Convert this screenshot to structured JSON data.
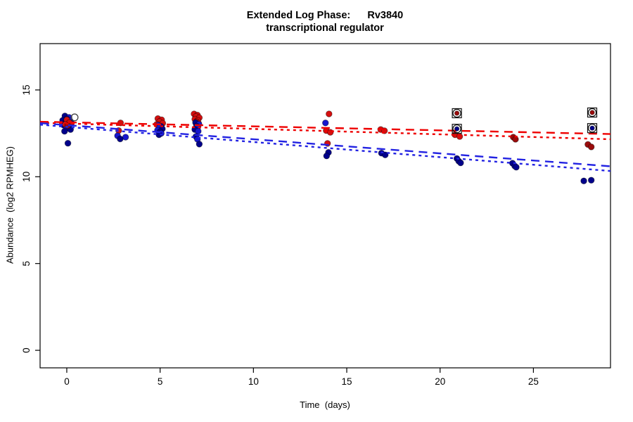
{
  "chart_data": {
    "type": "scatter",
    "title_line1": "Extended Log Phase:      Rv3840",
    "title_line2": "transcriptional regulator",
    "xlabel": "Time  (days)",
    "ylabel": "Abundance  (log2 RPMHEG)",
    "x_domain": [
      -1.43,
      29.13
    ],
    "y_domain": [
      -1.01,
      17.67
    ],
    "x_ticks": [
      0,
      5,
      10,
      15,
      20,
      25
    ],
    "y_ticks": [
      0,
      5,
      10,
      15
    ],
    "grid": false,
    "legend": "none",
    "colors": {
      "r": "#D60F0F",
      "dr": "#9B0B0B",
      "b": "#1717CE",
      "nb": "#00008B",
      "red_line": "#EE0000",
      "blue_line": "#2222E2",
      "marker_outline": "#111111",
      "axis": "#000000"
    },
    "points": [
      {
        "t": -0.1,
        "v": 13.5,
        "c": "nb"
      },
      {
        "t": 0.12,
        "v": 13.42,
        "c": "b"
      },
      {
        "t": 0.0,
        "v": 13.33,
        "c": "nb"
      },
      {
        "t": -0.22,
        "v": 13.25,
        "c": "nb"
      },
      {
        "t": 0.18,
        "v": 13.22,
        "c": "b"
      },
      {
        "t": -0.05,
        "v": 13.15,
        "c": "nb"
      },
      {
        "t": 0.25,
        "v": 13.1,
        "c": "nb"
      },
      {
        "t": 0.05,
        "v": 13.05,
        "c": "b"
      },
      {
        "t": -0.18,
        "v": 12.98,
        "c": "nb"
      },
      {
        "t": 0.1,
        "v": 12.9,
        "c": "nb"
      },
      {
        "t": -0.02,
        "v": 12.8,
        "c": "b"
      },
      {
        "t": 0.2,
        "v": 12.72,
        "c": "nb"
      },
      {
        "t": -0.12,
        "v": 12.62,
        "c": "nb"
      },
      {
        "t": 0.06,
        "v": 11.93,
        "c": "nb"
      },
      {
        "t": 0.0,
        "v": 13.28,
        "c": "r"
      },
      {
        "t": 0.14,
        "v": 13.12,
        "c": "r"
      },
      {
        "t": -0.08,
        "v": 13.02,
        "c": "r"
      },
      {
        "t": 0.05,
        "v": 12.95,
        "c": "dr"
      },
      {
        "t": 2.88,
        "v": 13.1,
        "c": "r"
      },
      {
        "t": 2.78,
        "v": 12.66,
        "c": "r"
      },
      {
        "t": 2.72,
        "v": 12.36,
        "c": "b"
      },
      {
        "t": 3.15,
        "v": 12.28,
        "c": "b"
      },
      {
        "t": 2.86,
        "v": 12.18,
        "c": "nb"
      },
      {
        "t": 4.88,
        "v": 13.35,
        "c": "r"
      },
      {
        "t": 5.08,
        "v": 13.28,
        "c": "r"
      },
      {
        "t": 4.97,
        "v": 13.18,
        "c": "r"
      },
      {
        "t": 5.14,
        "v": 13.08,
        "c": "r"
      },
      {
        "t": 4.82,
        "v": 13.02,
        "c": "r"
      },
      {
        "t": 4.9,
        "v": 12.97,
        "c": "b"
      },
      {
        "t": 5.05,
        "v": 12.9,
        "c": "nb"
      },
      {
        "t": 4.95,
        "v": 12.82,
        "c": "b"
      },
      {
        "t": 5.12,
        "v": 12.76,
        "c": "nb"
      },
      {
        "t": 4.86,
        "v": 12.68,
        "c": "b"
      },
      {
        "t": 5.0,
        "v": 12.6,
        "c": "nb"
      },
      {
        "t": 5.06,
        "v": 12.5,
        "c": "b"
      },
      {
        "t": 4.94,
        "v": 12.42,
        "c": "nb"
      },
      {
        "t": 6.82,
        "v": 13.62,
        "c": "r"
      },
      {
        "t": 7.0,
        "v": 13.55,
        "c": "r"
      },
      {
        "t": 6.92,
        "v": 13.47,
        "c": "r"
      },
      {
        "t": 7.1,
        "v": 13.4,
        "c": "r"
      },
      {
        "t": 6.86,
        "v": 13.32,
        "c": "r"
      },
      {
        "t": 7.02,
        "v": 13.25,
        "c": "r"
      },
      {
        "t": 6.95,
        "v": 13.17,
        "c": "r"
      },
      {
        "t": 7.06,
        "v": 13.08,
        "c": "r"
      },
      {
        "t": 6.9,
        "v": 13.12,
        "c": "nb"
      },
      {
        "t": 7.08,
        "v": 13.02,
        "c": "b"
      },
      {
        "t": 6.95,
        "v": 12.92,
        "c": "nb"
      },
      {
        "t": 7.0,
        "v": 12.82,
        "c": "b"
      },
      {
        "t": 6.86,
        "v": 12.72,
        "c": "nb"
      },
      {
        "t": 7.04,
        "v": 12.62,
        "c": "b"
      },
      {
        "t": 6.92,
        "v": 12.32,
        "c": "nb"
      },
      {
        "t": 7.0,
        "v": 12.16,
        "c": "b"
      },
      {
        "t": 7.1,
        "v": 11.88,
        "c": "nb"
      },
      {
        "t": 14.05,
        "v": 13.62,
        "c": "r"
      },
      {
        "t": 13.9,
        "v": 12.66,
        "c": "r"
      },
      {
        "t": 14.12,
        "v": 12.56,
        "c": "r"
      },
      {
        "t": 13.97,
        "v": 11.92,
        "c": "r"
      },
      {
        "t": 13.86,
        "v": 13.1,
        "c": "b"
      },
      {
        "t": 14.02,
        "v": 11.4,
        "c": "nb"
      },
      {
        "t": 13.92,
        "v": 11.2,
        "c": "nb"
      },
      {
        "t": 16.82,
        "v": 12.72,
        "c": "r"
      },
      {
        "t": 17.02,
        "v": 12.65,
        "c": "r"
      },
      {
        "t": 16.86,
        "v": 11.36,
        "c": "nb"
      },
      {
        "t": 17.06,
        "v": 11.26,
        "c": "nb"
      },
      {
        "t": 20.8,
        "v": 12.42,
        "c": "r"
      },
      {
        "t": 21.05,
        "v": 12.32,
        "c": "r"
      },
      {
        "t": 20.9,
        "v": 11.05,
        "c": "nb"
      },
      {
        "t": 21.0,
        "v": 10.9,
        "c": "nb"
      },
      {
        "t": 21.1,
        "v": 10.8,
        "c": "nb"
      },
      {
        "t": 23.92,
        "v": 12.28,
        "c": "dr"
      },
      {
        "t": 24.04,
        "v": 12.16,
        "c": "dr"
      },
      {
        "t": 23.88,
        "v": 10.78,
        "c": "nb"
      },
      {
        "t": 24.0,
        "v": 10.62,
        "c": "nb"
      },
      {
        "t": 24.08,
        "v": 10.55,
        "c": "nb"
      },
      {
        "t": 27.92,
        "v": 11.86,
        "c": "dr"
      },
      {
        "t": 28.1,
        "v": 11.72,
        "c": "dr"
      },
      {
        "t": 27.7,
        "v": 9.76,
        "c": "nb"
      },
      {
        "t": 28.1,
        "v": 9.8,
        "c": "nb"
      }
    ],
    "outlined_points": [
      {
        "t": 0.42,
        "v": 13.42
      }
    ],
    "boxed_points": [
      {
        "t": 20.9,
        "v": 13.66,
        "c": "dr"
      },
      {
        "t": 20.9,
        "v": 12.76,
        "c": "nb"
      },
      {
        "t": 28.15,
        "v": 13.7,
        "c": "dr"
      },
      {
        "t": 28.15,
        "v": 12.8,
        "c": "nb"
      }
    ],
    "trend_lines": [
      {
        "t1": -1.43,
        "v1": 13.17,
        "t2": 29.13,
        "v2": 12.46,
        "color": "#EE0000",
        "dash": "long"
      },
      {
        "t1": -1.43,
        "v1": 13.11,
        "t2": 29.13,
        "v2": 12.16,
        "color": "#EE0000",
        "dash": "short"
      },
      {
        "t1": -1.43,
        "v1": 13.09,
        "t2": 29.13,
        "v2": 10.6,
        "color": "#2222E2",
        "dash": "long"
      },
      {
        "t1": -1.43,
        "v1": 13.0,
        "t2": 29.13,
        "v2": 10.33,
        "color": "#2222E2",
        "dash": "short"
      }
    ]
  }
}
